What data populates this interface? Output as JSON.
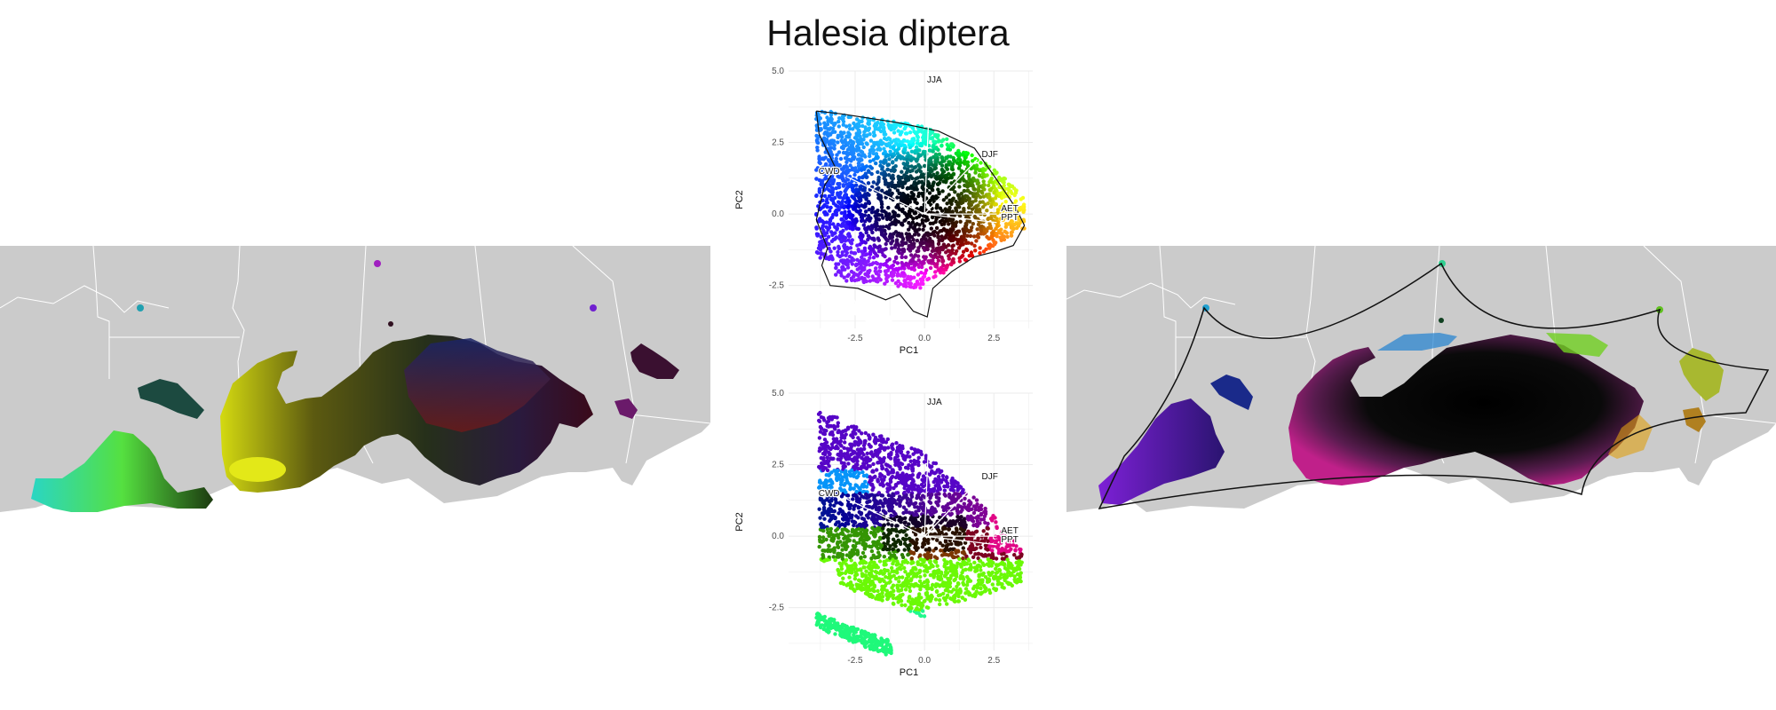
{
  "title": "Halesia diptera",
  "colors": {
    "map_background": "#cbcbcb",
    "state_lines": "#ffffff",
    "hull_outline": "#111111"
  },
  "maps": [
    {
      "name": "geographic-range-map",
      "panel": "left",
      "color_mode": "climate-PCA color"
    },
    {
      "name": "climate-hull-map",
      "panel": "right",
      "color_mode": "climate hull color"
    }
  ],
  "chart_data": [
    {
      "type": "scatter",
      "panel": "top",
      "title": "",
      "xlabel": "PC1",
      "ylabel": "PC2",
      "xlim": [
        -4.9,
        3.9
      ],
      "ylim": [
        -4.0,
        5.0
      ],
      "xticks": [
        "-2.5",
        "0.0",
        "2.5"
      ],
      "yticks": [
        "5.0",
        "2.5",
        "0.0",
        "-2.5"
      ],
      "grid": true,
      "loadings": [
        {
          "label": "JJA",
          "x": 0.2,
          "y": 4.5
        },
        {
          "label": "DJF",
          "x": 1.9,
          "y": 1.9
        },
        {
          "label": "CWD",
          "x": -2.8,
          "y": 1.3
        },
        {
          "label": "AET",
          "x": 2.6,
          "y": 0.0
        },
        {
          "label": "PPT",
          "x": 2.6,
          "y": -0.3
        }
      ]
    },
    {
      "type": "scatter",
      "panel": "bottom",
      "title": "",
      "xlabel": "PC1",
      "ylabel": "PC2",
      "xlim": [
        -4.9,
        3.9
      ],
      "ylim": [
        -4.0,
        5.0
      ],
      "xticks": [
        "-2.5",
        "0.0",
        "2.5"
      ],
      "yticks": [
        "5.0",
        "2.5",
        "0.0",
        "-2.5"
      ],
      "grid": true,
      "loadings": [
        {
          "label": "JJA",
          "x": 0.2,
          "y": 4.5
        },
        {
          "label": "DJF",
          "x": 1.9,
          "y": 1.9
        },
        {
          "label": "CWD",
          "x": -2.8,
          "y": 1.3
        },
        {
          "label": "AET",
          "x": 2.6,
          "y": 0.0
        },
        {
          "label": "PPT",
          "x": 2.6,
          "y": -0.3
        }
      ]
    }
  ]
}
